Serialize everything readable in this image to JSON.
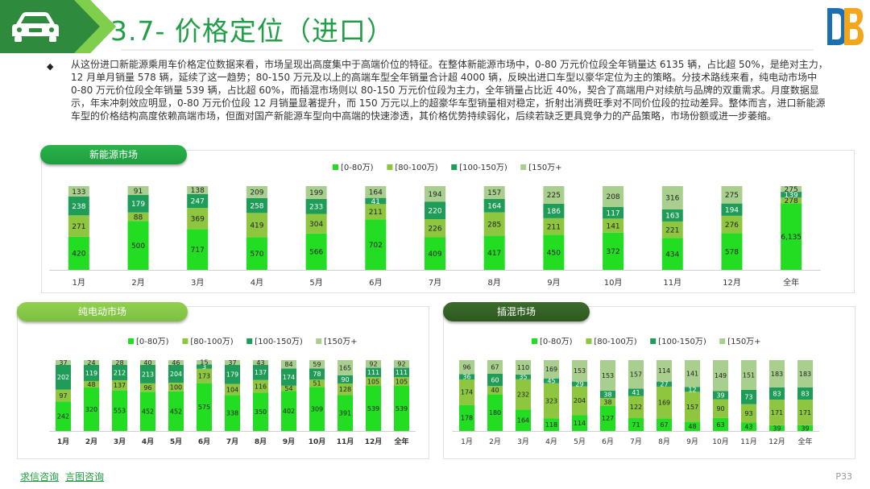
{
  "header": {
    "title": "3.7- 价格定位（进口）",
    "logo_text": "DB"
  },
  "body_text": "从这份进口新能源乘用车价格定位数据来看，市场呈现出高度集中于高端价位的特征。在整体新能源市场中，0-80 万元价位段全年销量达 6135 辆，占比超 50%，是绝对主力，12 月单月销量 578 辆，延续了这一趋势；80-150 万元及以上的高端车型全年销量合计超 4000 辆，反映出进口车型以豪华定位为主的策略。分技术路线来看，纯电动市场中 0-80 万元价位段全年销量 539 辆，占比超 60%，而插混市场则以 80-150 万元价位段为主力，全年销量占比近 40%，契合了高端用户对续航与品牌的双重需求。月度数据显示，年末冲刺效应明显，0-80 万元价位段 12 月销量显著提升，而 150 万元以上的超豪华车型销量相对稳定，折射出消费旺季对不同价位段的拉动差异。整体而言，进口新能源车型的价格结构高度依赖高端市场，但面对国产新能源车型向中高端的快速渗透，其价格优势持续弱化，后续若缺乏更具竞争力的产品策略，市场份额或进一步萎缩。",
  "footer": {
    "link1": "求信咨询",
    "link2": "言图咨询",
    "page": "P33"
  },
  "colors": {
    "s1": "#22dd22",
    "s2": "#8ec63f",
    "s3": "#1e9c58",
    "s4": "#a9cf8e",
    "header_dark": "#2e8b3d",
    "title": "#1f9e46"
  },
  "chart_data": [
    {
      "type": "bar",
      "stacked": true,
      "title": "新能源市场",
      "categories": [
        "1月",
        "2月",
        "3月",
        "4月",
        "5月",
        "6月",
        "7月",
        "8月",
        "9月",
        "10月",
        "11月",
        "12月",
        "全年"
      ],
      "series": [
        {
          "name": "[0-80万)",
          "values": [
            420,
            500,
            717,
            570,
            566,
            702,
            409,
            417,
            450,
            372,
            434,
            578,
            6135
          ]
        },
        {
          "name": "[80-100万)",
          "values": [
            271,
            88,
            369,
            419,
            304,
            211,
            226,
            285,
            211,
            141,
            221,
            276,
            278
          ]
        },
        {
          "name": "[100-150万)",
          "values": [
            238,
            179,
            247,
            258,
            233,
            41,
            220,
            164,
            186,
            117,
            163,
            194,
            139
          ]
        },
        {
          "name": "[150万+",
          "values": [
            133,
            91,
            138,
            209,
            199,
            164,
            194,
            157,
            225,
            208,
            316,
            275,
            275
          ]
        }
      ],
      "legend_position": "top-right"
    },
    {
      "type": "bar",
      "stacked": true,
      "title": "纯电动市场",
      "categories": [
        "1月",
        "2月",
        "3月",
        "4月",
        "5月",
        "6月",
        "7月",
        "8月",
        "9月",
        "10月",
        "11月",
        "12月",
        "全年"
      ],
      "series": [
        {
          "name": "[0-80万)",
          "values": [
            242,
            320,
            553,
            452,
            452,
            575,
            338,
            350,
            402,
            309,
            391,
            539,
            539
          ]
        },
        {
          "name": "[80-100万)",
          "values": [
            97,
            48,
            137,
            96,
            100,
            173,
            104,
            116,
            54,
            51,
            128,
            105,
            105
          ]
        },
        {
          "name": "[100-150万)",
          "values": [
            202,
            119,
            212,
            213,
            204,
            3,
            179,
            137,
            174,
            78,
            90,
            111,
            111
          ]
        },
        {
          "name": "[150万+",
          "values": [
            37,
            24,
            28,
            40,
            46,
            15,
            37,
            43,
            84,
            59,
            165,
            92,
            92
          ]
        }
      ],
      "legend_position": "top"
    },
    {
      "type": "bar",
      "stacked": true,
      "title": "插混市场",
      "categories": [
        "1月",
        "2月",
        "3月",
        "4月",
        "5月",
        "6月",
        "7月",
        "8月",
        "9月",
        "10月",
        "11月",
        "12月",
        "全年"
      ],
      "series": [
        {
          "name": "[0-80万)",
          "values": [
            178,
            180,
            164,
            118,
            114,
            127,
            71,
            67,
            48,
            63,
            43,
            39,
            39
          ]
        },
        {
          "name": "[80-100万)",
          "values": [
            174,
            40,
            232,
            323,
            204,
            38,
            122,
            169,
            157,
            90,
            93,
            171,
            171
          ]
        },
        {
          "name": "[100-150万)",
          "values": [
            36,
            60,
            35,
            45,
            29,
            38,
            41,
            27,
            12,
            39,
            73,
            83,
            83
          ]
        },
        {
          "name": "[150万+",
          "values": [
            96,
            67,
            110,
            169,
            153,
            153,
            157,
            114,
            141,
            149,
            151,
            183,
            183
          ]
        }
      ],
      "legend_position": "top"
    }
  ]
}
